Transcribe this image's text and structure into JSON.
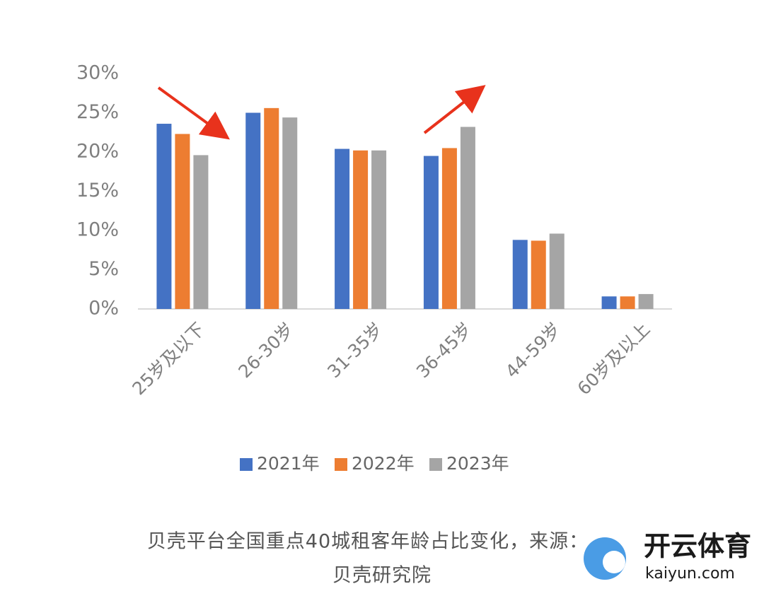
{
  "chart_data": {
    "type": "bar",
    "categories": [
      "25岁及以下",
      "26-30岁",
      "31-35岁",
      "36-45岁",
      "44-59岁",
      "60岁及以上"
    ],
    "series": [
      {
        "name": "2021年",
        "color": "#4472c4",
        "values": [
          23.6,
          25.0,
          20.4,
          19.5,
          8.8,
          1.6
        ]
      },
      {
        "name": "2022年",
        "color": "#ed7d31",
        "values": [
          22.3,
          25.6,
          20.2,
          20.5,
          8.7,
          1.6
        ]
      },
      {
        "name": "2023年",
        "color": "#a5a5a5",
        "values": [
          19.6,
          24.4,
          20.2,
          23.2,
          9.6,
          1.9
        ]
      }
    ],
    "ylim": [
      0,
      30
    ],
    "yticks": [
      {
        "value": 0,
        "label": "0%"
      },
      {
        "value": 5,
        "label": "5%"
      },
      {
        "value": 10,
        "label": "10%"
      },
      {
        "value": 15,
        "label": "15%"
      },
      {
        "value": 20,
        "label": "20%"
      },
      {
        "value": 25,
        "label": "25%"
      },
      {
        "value": 30,
        "label": "30%"
      }
    ],
    "grid": false,
    "legend": "bottom"
  },
  "caption_lines": [
    "贝壳平台全国重点40城租客年龄占比变化，来源：",
    "贝壳研究院"
  ],
  "watermark": {
    "title": "开云体育",
    "url": "kaiyun.com"
  }
}
